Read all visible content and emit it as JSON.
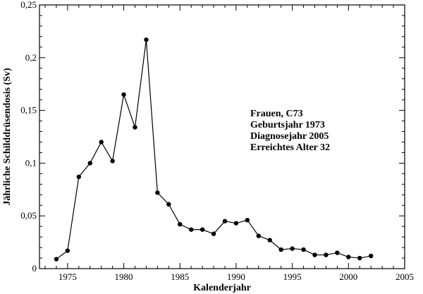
{
  "chart_data": {
    "type": "line",
    "title": "",
    "xlabel": "Kalenderjahr",
    "ylabel": "Jährliche Schilddrüsendosis (Sv)",
    "xlim": [
      1972.5,
      2005
    ],
    "ylim": [
      0,
      0.25
    ],
    "x_ticks": [
      1975,
      1980,
      1985,
      1990,
      1995,
      2000,
      2005
    ],
    "y_ticks": [
      0,
      0.05,
      0.1,
      0.15,
      0.2,
      0.25
    ],
    "x_tick_labels": [
      "1975",
      "1980",
      "1985",
      "1990",
      "1995",
      "2000",
      "2005"
    ],
    "y_tick_labels": [
      "0",
      "0,05",
      "0,1",
      "0,15",
      "0,2",
      "0,25"
    ],
    "grid": false,
    "series": [
      {
        "color": "#000000",
        "x": [
          1974,
          1975,
          1976,
          1977,
          1978,
          1979,
          1980,
          1981,
          1982,
          1983,
          1984,
          1985,
          1986,
          1987,
          1988,
          1989,
          1990,
          1991,
          1992,
          1993,
          1994,
          1995,
          1996,
          1997,
          1998,
          1999,
          2000,
          2001,
          2002
        ],
        "y": [
          0.009,
          0.017,
          0.087,
          0.1,
          0.12,
          0.102,
          0.165,
          0.134,
          0.217,
          0.072,
          0.061,
          0.042,
          0.037,
          0.037,
          0.033,
          0.045,
          0.043,
          0.046,
          0.031,
          0.027,
          0.018,
          0.019,
          0.018,
          0.013,
          0.013,
          0.015,
          0.011,
          0.01,
          0.012
        ]
      }
    ],
    "annotation_lines": [
      "Frauen, C73",
      "Geburtsjahr 1973",
      "Diagnosejahr 2005",
      "Erreichtes Alter 32"
    ]
  }
}
